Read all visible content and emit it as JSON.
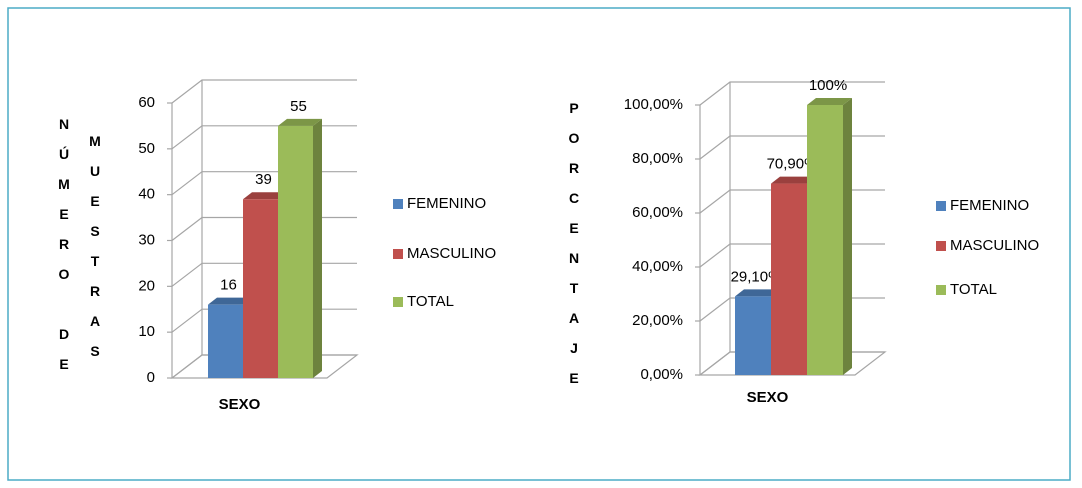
{
  "chart_data": [
    {
      "type": "bar3d",
      "category": "SEXO",
      "y_label": [
        "NÚMERO DE",
        "MUESTRAS"
      ],
      "ylim": [
        0,
        60
      ],
      "yticks": [
        0,
        10,
        20,
        30,
        40,
        50,
        60
      ],
      "series": [
        {
          "name": "FEMENINO",
          "color": "#4f81bd",
          "values": [
            16
          ]
        },
        {
          "name": "MASCULINO",
          "color": "#c0504d",
          "values": [
            39
          ]
        },
        {
          "name": "TOTAL",
          "color": "#9bbb59",
          "values": [
            55
          ]
        }
      ]
    },
    {
      "type": "bar3d",
      "category": "SEXO",
      "y_label": [
        "PORCENTAJE"
      ],
      "ylim": [
        0,
        100
      ],
      "yticks": [
        {
          "value": 0,
          "label": "0,00%"
        },
        {
          "value": 20,
          "label": "20,00%"
        },
        {
          "value": 40,
          "label": "40,00%"
        },
        {
          "value": 60,
          "label": "60,00%"
        },
        {
          "value": 80,
          "label": "80,00%"
        },
        {
          "value": 100,
          "label": "100,00%"
        }
      ],
      "series": [
        {
          "name": "FEMENINO",
          "color": "#4f81bd",
          "values": [
            29.1
          ],
          "value_labels": [
            "29,10%"
          ]
        },
        {
          "name": "MASCULINO",
          "color": "#c0504d",
          "values": [
            70.9
          ],
          "value_labels": [
            "70,90%"
          ]
        },
        {
          "name": "TOTAL",
          "color": "#9bbb59",
          "values": [
            100
          ],
          "value_labels": [
            "100%"
          ]
        }
      ]
    }
  ]
}
